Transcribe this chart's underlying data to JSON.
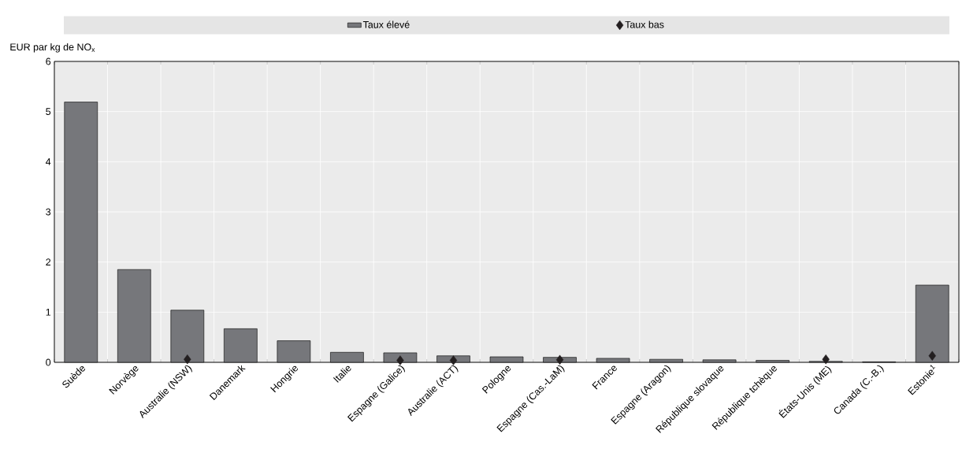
{
  "chart_data": {
    "type": "bar",
    "ylabel": "EUR par kg de NO$_{x}$",
    "categories": [
      "Suède",
      "Norvège",
      "Australie (NSW)",
      "Danemark",
      "Hongrie",
      "Italie",
      "Espagne (Galice)",
      "Australie (ACT)",
      "Pologne",
      "Espagne (Cas.-LaM)",
      "France",
      "Espagne (Aragon)",
      "République slovaque",
      "République tchèque",
      "États-Unis (ME)",
      "Canada (C.-B.)",
      "Estonie$^{1}$"
    ],
    "series": [
      {
        "name": "Taux élevé",
        "color": "#76777b",
        "values": [
          5.19,
          1.85,
          1.04,
          0.67,
          0.43,
          0.2,
          0.19,
          0.13,
          0.11,
          0.1,
          0.08,
          0.06,
          0.05,
          0.04,
          0.02,
          0.01,
          1.54
        ]
      },
      {
        "name": "Taux bas",
        "type": "scatter",
        "color": "#231f20",
        "values": [
          null,
          null,
          0.06,
          null,
          null,
          null,
          0.04,
          0.04,
          null,
          0.05,
          null,
          null,
          null,
          null,
          0.06,
          null,
          0.13
        ]
      }
    ],
    "marker": "diamond",
    "ylim": [
      0,
      6
    ],
    "yticks": [
      0,
      1,
      2,
      3,
      4,
      5,
      6
    ],
    "grid": true,
    "legend": "top"
  }
}
